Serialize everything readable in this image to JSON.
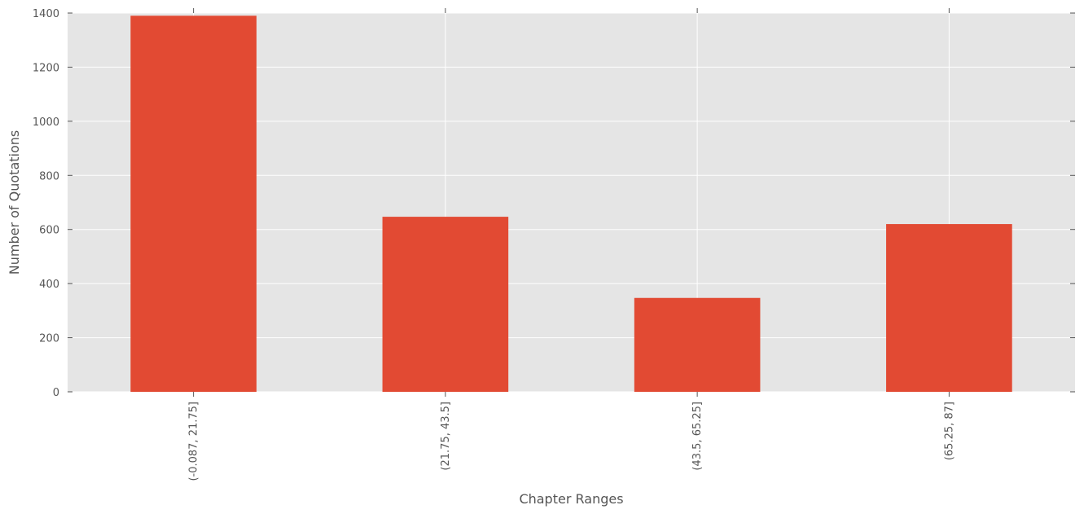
{
  "chart_data": {
    "type": "bar",
    "title": "",
    "xlabel": "Chapter Ranges",
    "ylabel": "Number of Quotations",
    "categories": [
      "(-0.087, 21.75]",
      "(21.75, 43.5]",
      "(43.5, 65.25]",
      "(65.25, 87]"
    ],
    "values": [
      1390,
      647,
      347,
      620
    ],
    "ylim": [
      0,
      1400
    ],
    "yticks": [
      0,
      200,
      400,
      600,
      800,
      1000,
      1200,
      1400
    ],
    "grid": true,
    "legend": "none",
    "colors": {
      "bar": "#E24A33",
      "background": "#E5E5E5",
      "grid": "#FFFFFF",
      "text": "#555555"
    }
  }
}
